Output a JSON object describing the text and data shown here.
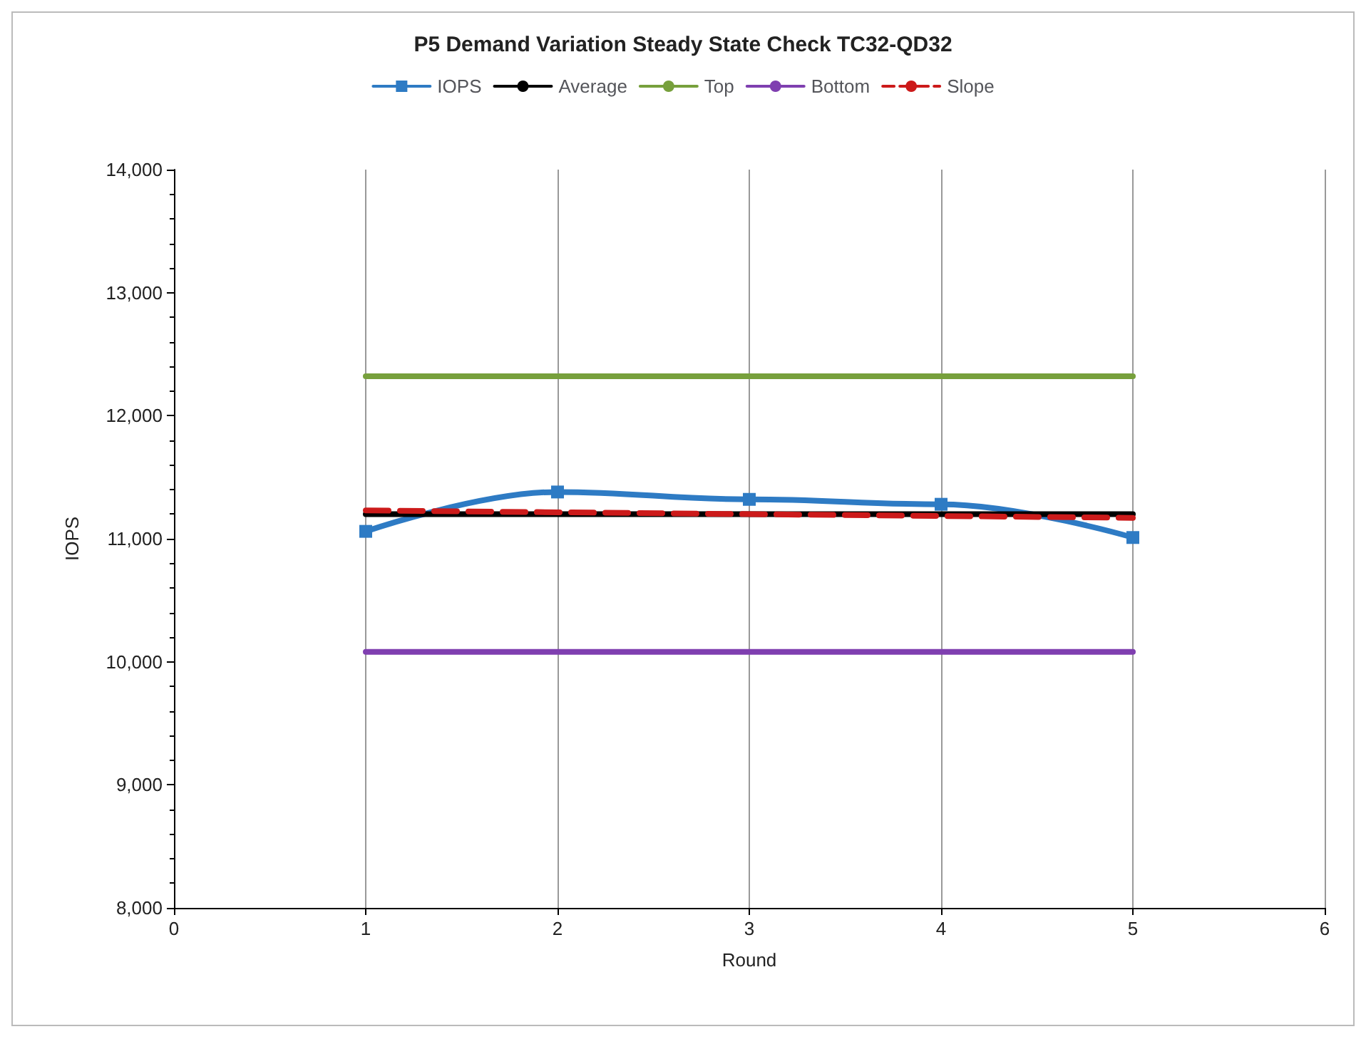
{
  "chart_data": {
    "type": "line",
    "title": "P5 Demand Variation Steady State Check TC32-QD32",
    "xlabel": "Round",
    "ylabel": "IOPS",
    "xlim": [
      0,
      6
    ],
    "xticks": [
      0,
      1,
      2,
      3,
      4,
      5,
      6
    ],
    "ylim": [
      8000,
      14000
    ],
    "yticks": [
      {
        "value": 8000,
        "label": "8,000"
      },
      {
        "value": 9000,
        "label": "9,000"
      },
      {
        "value": 10000,
        "label": "10,000"
      },
      {
        "value": 11000,
        "label": "11,000"
      },
      {
        "value": 12000,
        "label": "12,000"
      },
      {
        "value": 13000,
        "label": "13,000"
      },
      {
        "value": 14000,
        "label": "14,000"
      }
    ],
    "grid": "x",
    "legend": "top",
    "series": [
      {
        "name": "IOPS",
        "color": "#2e7bc4",
        "x": [
          1,
          2,
          3,
          4,
          5
        ],
        "values": [
          11060,
          11380,
          11320,
          11280,
          11010
        ],
        "marker": "square",
        "line_style": "solid"
      },
      {
        "name": "Average",
        "color": "#000000",
        "x": [
          1,
          5
        ],
        "values": [
          11200,
          11200
        ],
        "marker": "none",
        "line_style": "solid"
      },
      {
        "name": "Top",
        "color": "#77a03c",
        "x": [
          1,
          5
        ],
        "values": [
          12320,
          12320
        ],
        "marker": "none",
        "line_style": "solid"
      },
      {
        "name": "Bottom",
        "color": "#7f3fb0",
        "x": [
          1,
          5
        ],
        "values": [
          10080,
          10080
        ],
        "marker": "none",
        "line_style": "solid"
      },
      {
        "name": "Slope",
        "color": "#cc1a1a",
        "x": [
          1,
          5
        ],
        "values": [
          11230,
          11170
        ],
        "marker": "none",
        "line_style": "dashed"
      }
    ]
  }
}
